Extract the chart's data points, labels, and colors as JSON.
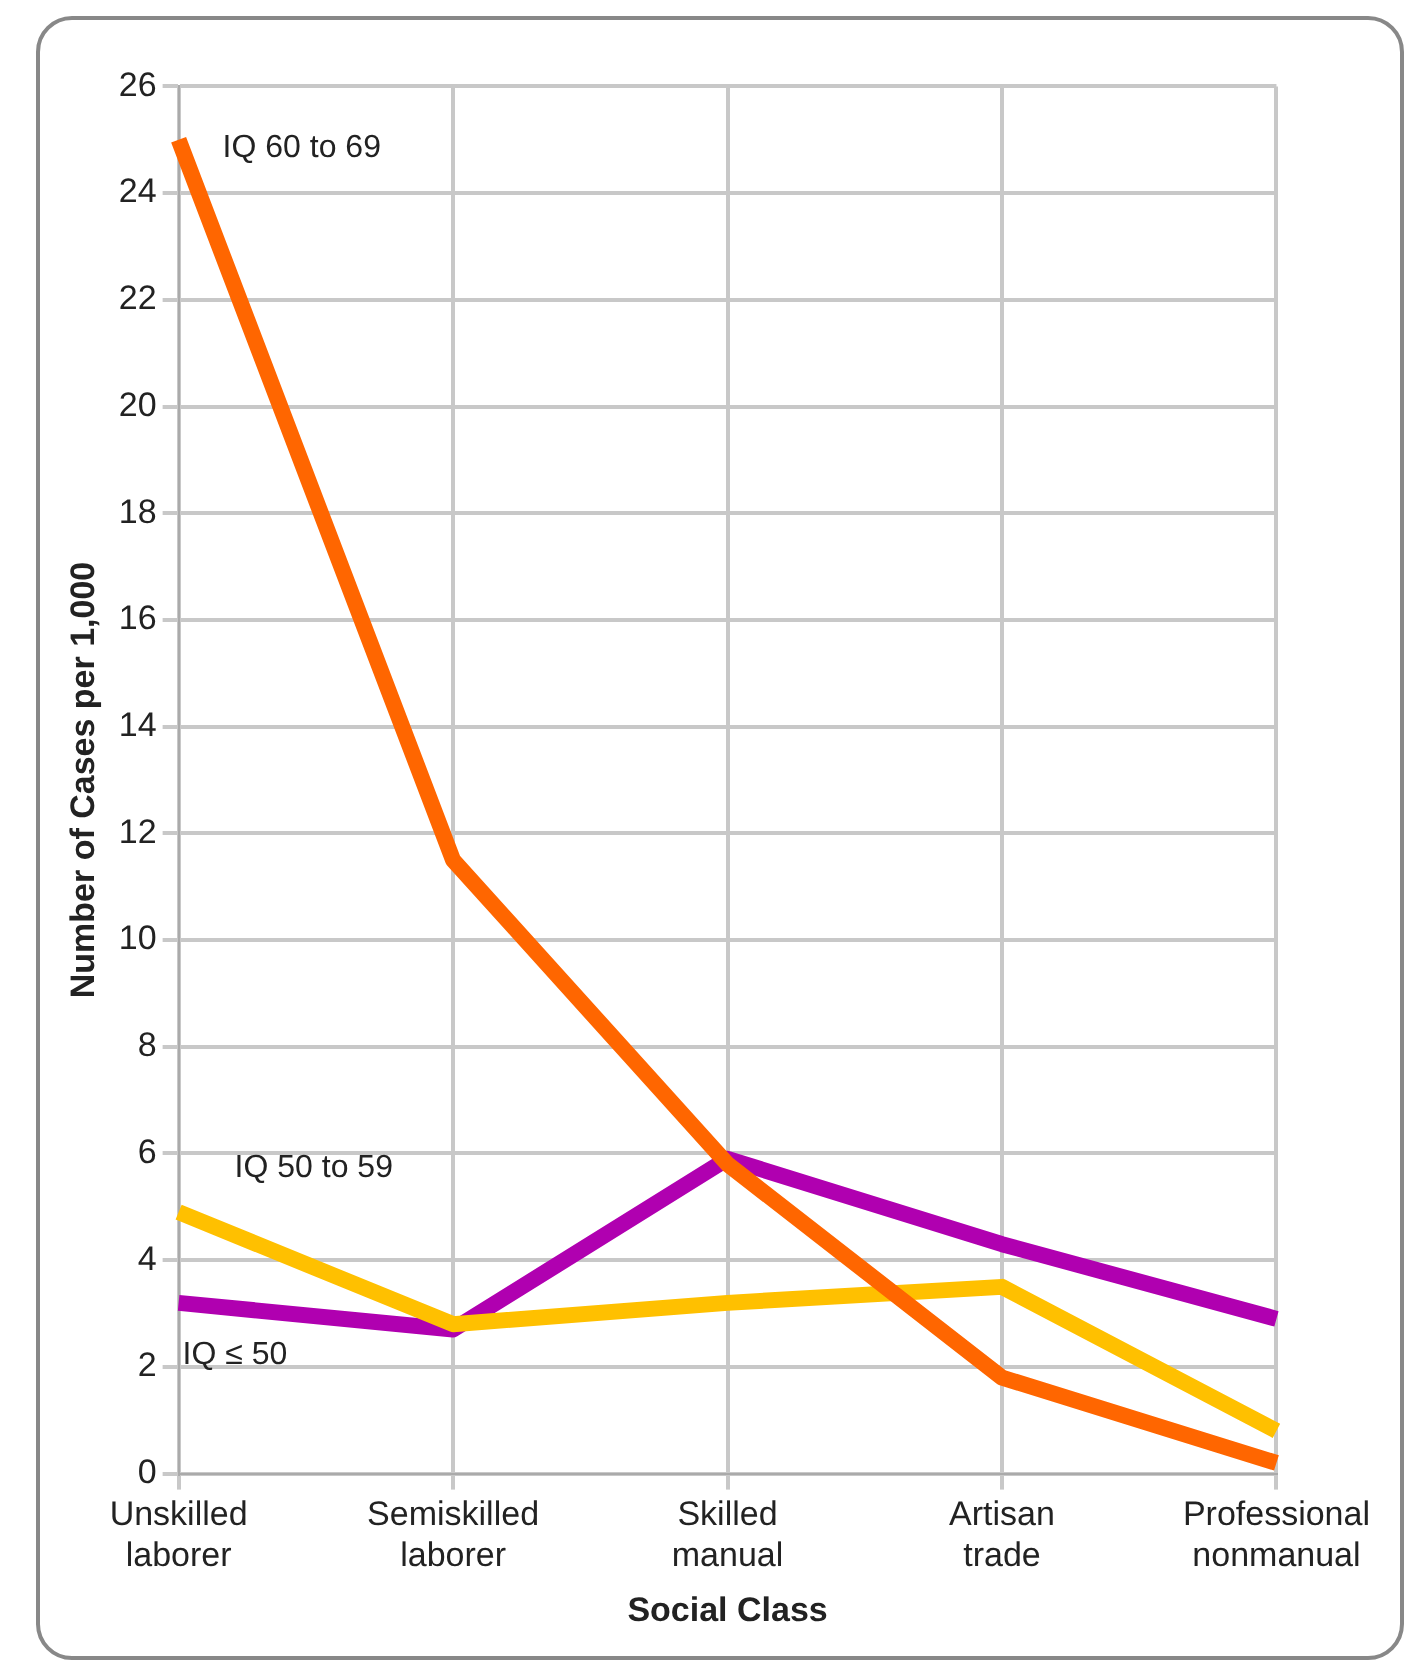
{
  "chart_data": {
    "type": "line",
    "xlabel": "Social Class",
    "ylabel": "Number of Cases per 1,000",
    "categories": [
      "Unskilled laborer",
      "Semiskilled laborer",
      "Skilled manual",
      "Artisan trade",
      "Professional nonmanual"
    ],
    "series": [
      {
        "name": "IQ 60 to 69",
        "color": "#ff6600",
        "values": [
          25,
          11.5,
          5.8,
          1.8,
          0.2
        ]
      },
      {
        "name": "IQ 50 to 59",
        "color": "#ffc000",
        "values": [
          4.9,
          2.8,
          3.2,
          3.5,
          0.8
        ]
      },
      {
        "name": "IQ ≤ 50",
        "color": "#b000b0",
        "values": [
          3.2,
          2.7,
          5.9,
          4.3,
          2.9
        ]
      }
    ],
    "ylim": [
      0,
      26
    ],
    "yticks": [
      0,
      2,
      4,
      6,
      8,
      10,
      12,
      14,
      16,
      18,
      20,
      22,
      24,
      26
    ],
    "grid": true,
    "legend": false,
    "marker": "none",
    "line_style": "solid"
  }
}
